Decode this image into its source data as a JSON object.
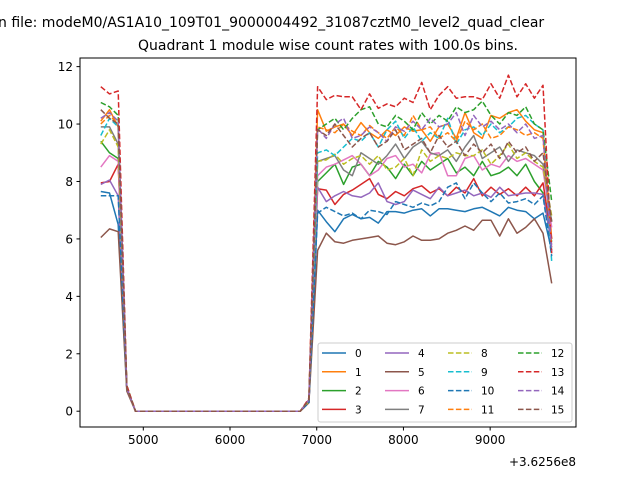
{
  "chart_data": {
    "type": "line",
    "suptitle": "n file: modeM0/AS1A10_109T01_9000004492_31087cztM0_level2_quad_clear",
    "title": "Quadrant 1 module wise count rates with 100.0s bins.",
    "xlabel": "",
    "ylabel": "",
    "x_offset_text": "+3.6256e8",
    "xlim": [
      4270,
      9990
    ],
    "ylim": [
      -0.55,
      12.3
    ],
    "xticks": [
      5000,
      6000,
      7000,
      8000,
      9000
    ],
    "xtick_labels": [
      "5000",
      "6000",
      "7000",
      "8000",
      "9000"
    ],
    "yticks": [
      0,
      2,
      4,
      6,
      8,
      10,
      12
    ],
    "ytick_labels": [
      "0",
      "2",
      "4",
      "6",
      "8",
      "10",
      "12"
    ],
    "grid": false,
    "legend": {
      "placement": "lower-right",
      "columns": 4
    },
    "x_start": 4510,
    "x_step": 100,
    "series": [
      {
        "name": "0",
        "color": "#1f77b4",
        "style": "solid",
        "values": [
          7.65,
          7.6,
          6.5,
          0.8,
          0,
          0,
          0,
          0,
          0,
          0,
          0,
          0,
          0,
          0,
          0,
          0,
          0,
          0,
          0,
          0,
          0,
          0,
          0,
          0,
          0.3,
          7.0,
          6.6,
          6.25,
          6.7,
          6.85,
          6.7,
          6.75,
          6.55,
          6.95,
          6.95,
          6.9,
          7.0,
          7.05,
          6.8,
          7.05,
          7.05,
          7.0,
          6.95,
          7.05,
          7.1,
          6.95,
          6.8,
          7.1,
          7.0,
          6.95,
          6.7,
          6.9,
          5.6
        ]
      },
      {
        "name": "1",
        "color": "#ff7f0e",
        "style": "solid",
        "values": [
          10.1,
          10.5,
          9.9,
          0.8,
          0,
          0,
          0,
          0,
          0,
          0,
          0,
          0,
          0,
          0,
          0,
          0,
          0,
          0,
          0,
          0,
          0,
          0,
          0,
          0,
          0.4,
          10.5,
          9.75,
          9.9,
          10.0,
          9.6,
          10.05,
          9.7,
          9.5,
          9.8,
          9.6,
          9.9,
          9.75,
          9.8,
          9.4,
          9.9,
          10.0,
          9.5,
          10.4,
          9.7,
          9.5,
          10.3,
          10.2,
          10.4,
          10.5,
          10.1,
          9.8,
          9.7,
          6.0
        ]
      },
      {
        "name": "2",
        "color": "#2ca02c",
        "style": "solid",
        "values": [
          9.4,
          9.0,
          8.8,
          0.8,
          0,
          0,
          0,
          0,
          0,
          0,
          0,
          0,
          0,
          0,
          0,
          0,
          0,
          0,
          0,
          0,
          0,
          0,
          0,
          0,
          0.35,
          8.0,
          8.3,
          8.6,
          7.9,
          8.5,
          8.6,
          8.2,
          8.7,
          8.5,
          8.1,
          8.6,
          8.2,
          8.7,
          8.4,
          8.6,
          8.8,
          8.3,
          8.5,
          8.2,
          8.7,
          8.2,
          8.3,
          8.5,
          8.2,
          8.6,
          8.0,
          7.6,
          5.9
        ]
      },
      {
        "name": "3",
        "color": "#d62728",
        "style": "solid",
        "values": [
          7.95,
          8.0,
          8.6,
          0.8,
          0,
          0,
          0,
          0,
          0,
          0,
          0,
          0,
          0,
          0,
          0,
          0,
          0,
          0,
          0,
          0,
          0,
          0,
          0,
          0,
          0.3,
          7.75,
          7.7,
          7.2,
          7.55,
          7.7,
          7.9,
          8.1,
          7.55,
          7.4,
          7.65,
          7.5,
          7.75,
          7.85,
          7.6,
          7.75,
          7.5,
          7.8,
          7.6,
          8.1,
          7.5,
          7.8,
          7.55,
          7.75,
          7.5,
          7.8,
          7.5,
          7.95,
          6.0
        ]
      },
      {
        "name": "4",
        "color": "#9467bd",
        "style": "solid",
        "values": [
          7.9,
          8.05,
          7.5,
          0.8,
          0,
          0,
          0,
          0,
          0,
          0,
          0,
          0,
          0,
          0,
          0,
          0,
          0,
          0,
          0,
          0,
          0,
          0,
          0,
          0,
          0.3,
          7.8,
          7.3,
          7.5,
          7.65,
          7.5,
          7.45,
          7.6,
          7.95,
          7.3,
          7.2,
          7.3,
          7.7,
          7.55,
          7.4,
          7.8,
          7.5,
          7.6,
          7.7,
          7.5,
          7.6,
          7.45,
          7.8,
          7.5,
          7.55,
          7.6,
          7.6,
          7.55,
          5.8
        ]
      },
      {
        "name": "5",
        "color": "#8c564b",
        "style": "solid",
        "values": [
          6.05,
          6.35,
          6.25,
          0.7,
          0,
          0,
          0,
          0,
          0,
          0,
          0,
          0,
          0,
          0,
          0,
          0,
          0,
          0,
          0,
          0,
          0,
          0,
          0,
          0,
          0.3,
          5.6,
          6.2,
          5.9,
          5.85,
          5.95,
          6.0,
          6.05,
          6.1,
          5.85,
          5.8,
          5.9,
          6.1,
          5.95,
          5.95,
          6.0,
          6.2,
          6.3,
          6.45,
          6.3,
          6.65,
          6.65,
          6.1,
          6.7,
          6.2,
          6.4,
          6.7,
          6.2,
          4.45
        ]
      },
      {
        "name": "6",
        "color": "#e377c2",
        "style": "solid",
        "values": [
          8.5,
          8.9,
          8.7,
          0.8,
          0,
          0,
          0,
          0,
          0,
          0,
          0,
          0,
          0,
          0,
          0,
          0,
          0,
          0,
          0,
          0,
          0,
          0,
          0,
          0,
          0.35,
          8.2,
          8.5,
          8.6,
          8.75,
          8.9,
          8.6,
          8.2,
          8.4,
          8.8,
          8.9,
          8.5,
          8.6,
          8.3,
          8.95,
          9.0,
          8.2,
          8.2,
          8.8,
          8.9,
          8.4,
          8.6,
          8.5,
          8.9,
          8.7,
          8.8,
          8.6,
          8.4,
          6.4
        ]
      },
      {
        "name": "7",
        "color": "#7f7f7f",
        "style": "solid",
        "values": [
          9.9,
          9.9,
          9.3,
          0.8,
          0,
          0,
          0,
          0,
          0,
          0,
          0,
          0,
          0,
          0,
          0,
          0,
          0,
          0,
          0,
          0,
          0,
          0,
          0,
          0,
          0.35,
          8.7,
          8.8,
          8.9,
          8.4,
          8.2,
          9.0,
          8.8,
          8.6,
          8.9,
          9.3,
          8.8,
          9.2,
          9.4,
          9.0,
          8.9,
          9.1,
          8.7,
          9.2,
          9.6,
          8.8,
          9.0,
          9.2,
          8.7,
          9.1,
          9.0,
          8.9,
          8.6,
          6.6
        ]
      },
      {
        "name": "8",
        "color": "#bcbd22",
        "style": "dashed",
        "values": [
          9.3,
          9.8,
          9.2,
          0.8,
          0,
          0,
          0,
          0,
          0,
          0,
          0,
          0,
          0,
          0,
          0,
          0,
          0,
          0,
          0,
          0,
          0,
          0,
          0,
          0,
          0.35,
          8.7,
          8.75,
          8.95,
          8.6,
          8.8,
          8.9,
          8.6,
          8.9,
          8.4,
          8.5,
          8.8,
          8.2,
          9.1,
          8.7,
          8.9,
          8.8,
          9.0,
          8.9,
          8.9,
          9.1,
          8.6,
          8.9,
          9.3,
          8.8,
          9.0,
          8.7,
          8.5,
          6.8
        ]
      },
      {
        "name": "9",
        "color": "#17becf",
        "style": "dashed",
        "values": [
          9.6,
          10.2,
          9.9,
          0.8,
          0,
          0,
          0,
          0,
          0,
          0,
          0,
          0,
          0,
          0,
          0,
          0,
          0,
          0,
          0,
          0,
          0,
          0,
          0,
          0,
          0.4,
          9.0,
          9.1,
          8.9,
          9.2,
          9.5,
          9.4,
          9.7,
          9.2,
          9.8,
          10.1,
          9.5,
          9.9,
          9.4,
          9.7,
          9.5,
          10.2,
          9.3,
          9.8,
          9.9,
          9.6,
          10.0,
          9.7,
          9.9,
          10.2,
          10.3,
          10.0,
          9.8,
          5.2
        ]
      },
      {
        "name": "10",
        "color": "#1f77b4",
        "style": "dashed",
        "values": [
          7.5,
          7.5,
          7.5,
          0.8,
          0,
          0,
          0,
          0,
          0,
          0,
          0,
          0,
          0,
          0,
          0,
          0,
          0,
          0,
          0,
          0,
          0,
          0,
          0,
          0,
          0.3,
          6.9,
          7.1,
          6.95,
          6.8,
          6.9,
          6.7,
          7.0,
          6.95,
          6.85,
          7.3,
          7.2,
          7.1,
          7.25,
          7.15,
          7.3,
          7.8,
          7.95,
          7.4,
          7.95,
          7.6,
          7.3,
          7.6,
          7.25,
          7.3,
          7.4,
          7.2,
          7.5,
          5.4
        ]
      },
      {
        "name": "11",
        "color": "#ff7f0e",
        "style": "dashed",
        "values": [
          10.0,
          10.3,
          10.0,
          0.8,
          0,
          0,
          0,
          0,
          0,
          0,
          0,
          0,
          0,
          0,
          0,
          0,
          0,
          0,
          0,
          0,
          0,
          0,
          0,
          0,
          0.4,
          9.9,
          9.8,
          9.7,
          10.0,
          9.75,
          9.6,
          9.95,
          9.7,
          9.5,
          9.9,
          9.6,
          10.3,
          9.8,
          9.9,
          9.5,
          9.7,
          9.4,
          10.1,
          9.8,
          10.0,
          9.5,
          9.6,
          9.9,
          9.8,
          9.6,
          9.7,
          9.5,
          5.7
        ]
      },
      {
        "name": "12",
        "color": "#2ca02c",
        "style": "dashed",
        "values": [
          10.75,
          10.6,
          10.3,
          0.9,
          0,
          0,
          0,
          0,
          0,
          0,
          0,
          0,
          0,
          0,
          0,
          0,
          0,
          0,
          0,
          0,
          0,
          0,
          0,
          0,
          0.4,
          9.8,
          10.0,
          10.2,
          9.8,
          10.2,
          10.5,
          10.6,
          10.0,
          9.9,
          10.3,
          10.1,
          9.8,
          10.4,
          10.0,
          10.3,
          10.1,
          10.6,
          10.4,
          10.5,
          10.8,
          10.3,
          10.0,
          10.4,
          10.3,
          10.6,
          10.0,
          9.8,
          7.3
        ]
      },
      {
        "name": "13",
        "color": "#d62728",
        "style": "dashed",
        "values": [
          11.3,
          11.05,
          11.15,
          0.9,
          0,
          0,
          0,
          0,
          0,
          0,
          0,
          0,
          0,
          0,
          0,
          0,
          0,
          0,
          0,
          0,
          0,
          0,
          0,
          0,
          0.45,
          11.3,
          10.85,
          11.0,
          10.95,
          10.95,
          10.5,
          11.05,
          10.55,
          10.7,
          10.6,
          10.9,
          10.75,
          11.45,
          10.5,
          11.0,
          11.3,
          10.9,
          10.95,
          10.95,
          10.85,
          11.4,
          10.9,
          11.7,
          10.95,
          11.4,
          10.9,
          11.35,
          5.5
        ]
      },
      {
        "name": "14",
        "color": "#9467bd",
        "style": "dashed",
        "values": [
          10.2,
          10.4,
          10.1,
          0.8,
          0,
          0,
          0,
          0,
          0,
          0,
          0,
          0,
          0,
          0,
          0,
          0,
          0,
          0,
          0,
          0,
          0,
          0,
          0,
          0,
          0.4,
          9.85,
          9.5,
          10.0,
          10.2,
          9.5,
          9.6,
          9.9,
          9.7,
          9.4,
          9.9,
          9.75,
          10.1,
          9.8,
          10.2,
          9.9,
          10.0,
          10.4,
          9.6,
          10.3,
          9.9,
          10.1,
          9.8,
          10.0,
          9.7,
          10.0,
          9.5,
          9.6,
          5.6
        ]
      },
      {
        "name": "15",
        "color": "#8c564b",
        "style": "dashed",
        "values": [
          10.5,
          10.2,
          10.0,
          0.8,
          0,
          0,
          0,
          0,
          0,
          0,
          0,
          0,
          0,
          0,
          0,
          0,
          0,
          0,
          0,
          0,
          0,
          0,
          0,
          0,
          0.4,
          9.8,
          9.6,
          10.0,
          9.6,
          9.2,
          9.5,
          9.7,
          9.2,
          9.4,
          9.8,
          9.1,
          9.3,
          9.5,
          9.0,
          9.6,
          9.2,
          9.4,
          8.9,
          9.3,
          9.0,
          9.3,
          8.8,
          9.4,
          9.0,
          9.2,
          8.7,
          9.0,
          6.6
        ]
      }
    ]
  }
}
